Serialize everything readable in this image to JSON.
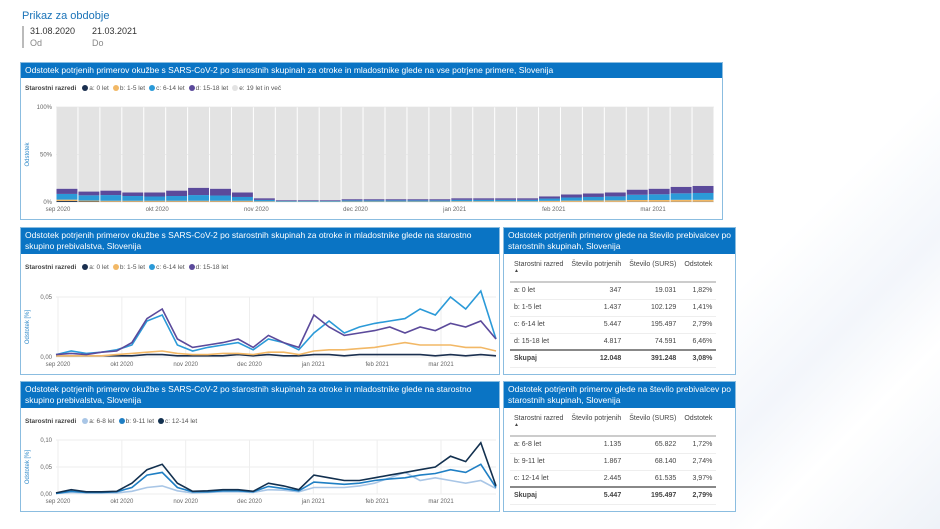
{
  "period": {
    "title": "Prikaz za obdobje",
    "from": "31.08.2020",
    "to": "21.03.2021",
    "from_label": "Od",
    "to_label": "Do"
  },
  "panel1": {
    "title": "Odstotek potrjenih primerov okužbe s SARS-CoV-2 po starostnih skupinah za otroke in mladostnike glede na vse potrjene primere, Slovenija"
  },
  "panel2": {
    "title": "Odstotek potrjenih primerov okužbe s SARS-CoV-2 po starostnih skupinah za otroke in mladostnike glede na starostno skupino prebivalstva, Slovenija"
  },
  "panel3": {
    "title": "Odstotek potrjenih primerov okužbe s SARS-CoV-2 po starostnih skupinah za otroke in mladostnike glede na starostno skupino prebivalstva, Slovenija"
  },
  "table1": {
    "title": "Odstotek potrjenih primerov glede na število prebivalcev po starostnih skupinah, Slovenija",
    "headers": [
      "Starostni razred",
      "Število potrjenih",
      "Število (SURS)",
      "Odstotek"
    ],
    "rows": [
      [
        "a: 0 let",
        "347",
        "19.031",
        "1,82%"
      ],
      [
        "b: 1-5 let",
        "1.437",
        "102.129",
        "1,41%"
      ],
      [
        "c: 6-14 let",
        "5.447",
        "195.497",
        "2,79%"
      ],
      [
        "d: 15-18 let",
        "4.817",
        "74.591",
        "6,46%"
      ]
    ],
    "total": [
      "Skupaj",
      "12.048",
      "391.248",
      "3,08%"
    ]
  },
  "table2": {
    "title": "Odstotek potrjenih primerov glede na število prebivalcev po starostnih skupinah, Slovenija",
    "headers": [
      "Starostni razred",
      "Število potrjenih",
      "Število (SURS)",
      "Odstotek"
    ],
    "rows": [
      [
        "a: 6-8 let",
        "1.135",
        "65.822",
        "1,72%"
      ],
      [
        "b: 9-11 let",
        "1.867",
        "68.140",
        "2,74%"
      ],
      [
        "c: 12-14 let",
        "2.445",
        "61.535",
        "3,97%"
      ]
    ],
    "total": [
      "Skupaj",
      "5.447",
      "195.497",
      "2,79%"
    ]
  },
  "chart_data": [
    {
      "type": "bar",
      "stacked": true,
      "legend_title": "Starostni razredi",
      "ylabel": "Odstotek",
      "ylim": [
        0,
        100
      ],
      "yticks": [
        "0%",
        "50%",
        "100%"
      ],
      "xticks": [
        "sep 2020",
        "okt 2020",
        "nov 2020",
        "dec 2020",
        "jan 2021",
        "feb 2021",
        "mar 2021"
      ],
      "x": [
        "2020-08-31",
        "2020-09-07",
        "2020-09-14",
        "2020-09-21",
        "2020-09-28",
        "2020-10-05",
        "2020-10-12",
        "2020-10-19",
        "2020-10-26",
        "2020-11-02",
        "2020-11-09",
        "2020-11-16",
        "2020-11-23",
        "2020-11-30",
        "2020-12-07",
        "2020-12-14",
        "2020-12-21",
        "2020-12-28",
        "2021-01-04",
        "2021-01-11",
        "2021-01-18",
        "2021-01-25",
        "2021-02-01",
        "2021-02-08",
        "2021-02-15",
        "2021-02-22",
        "2021-03-01",
        "2021-03-08",
        "2021-03-15",
        "2021-03-21"
      ],
      "series": [
        {
          "name": "a: 0 let",
          "color": "#1a2f4f",
          "values": [
            1,
            0.5,
            0.3,
            0.3,
            0.3,
            0.3,
            0.3,
            0.3,
            0.3,
            0.2,
            0.1,
            0.1,
            0.1,
            0.1,
            0.1,
            0.1,
            0.1,
            0.1,
            0.1,
            0.1,
            0.1,
            0.1,
            0.2,
            0.2,
            0.2,
            0.2,
            0.3,
            0.3,
            0.3,
            0.3
          ]
        },
        {
          "name": "b: 1-5 let",
          "color": "#f2b866",
          "values": [
            1.5,
            1,
            1,
            1,
            1,
            1,
            1,
            1,
            1,
            0.5,
            0.3,
            0.3,
            0.3,
            0.4,
            0.4,
            0.4,
            0.4,
            0.4,
            0.6,
            0.6,
            0.6,
            0.6,
            1,
            1.2,
            1.4,
            1.5,
            1.8,
            1.8,
            2,
            2
          ]
        },
        {
          "name": "c: 6-14 let",
          "color": "#2b9ad8",
          "values": [
            6,
            5.5,
            6,
            5,
            4.5,
            5,
            6,
            5.5,
            4,
            1.5,
            0.8,
            0.8,
            0.8,
            1.2,
            1.2,
            1.2,
            1.2,
            1.2,
            1.6,
            1.6,
            1.6,
            1.6,
            2.4,
            3.3,
            3.7,
            4.2,
            5.5,
            6,
            6.8,
            7.2
          ]
        },
        {
          "name": "d: 15-18 let",
          "color": "#5b4a9b",
          "values": [
            5.5,
            4,
            4.7,
            3.7,
            4.2,
            5.7,
            7.7,
            7.2,
            4.7,
            1.8,
            0.8,
            0.8,
            0.8,
            1.3,
            1.3,
            1.3,
            1.3,
            1.3,
            1.7,
            1.7,
            1.7,
            1.7,
            2.4,
            3.3,
            3.7,
            4.1,
            5.4,
            5.9,
            6.9,
            7.5
          ]
        },
        {
          "name": "e: 19 let in več",
          "color": "#e3e3e3",
          "values": [
            86,
            89,
            88,
            90,
            90,
            88,
            85,
            86,
            90,
            96,
            98,
            98,
            98,
            97,
            97,
            97,
            97,
            97,
            96,
            96,
            96,
            96,
            94,
            92,
            91,
            90,
            87,
            86,
            84,
            83
          ]
        }
      ]
    },
    {
      "type": "line",
      "legend_title": "Starostni razredi",
      "ylabel": "Odstotek [%]",
      "ylim": [
        0,
        0.06
      ],
      "yticks": [
        "0,00",
        "0,05"
      ],
      "xticks": [
        "sep 2020",
        "okt 2020",
        "nov 2020",
        "dec 2020",
        "jan 2021",
        "feb 2021",
        "mar 2021"
      ],
      "series": [
        {
          "name": "a: 0 let",
          "color": "#1a2f4f",
          "values": [
            0.001,
            0.001,
            0.001,
            0.001,
            0.001,
            0.001,
            0.002,
            0.002,
            0.001,
            0.001,
            0.001,
            0.001,
            0.002,
            0.001,
            0.002,
            0.001,
            0.001,
            0.002,
            0.002,
            0.001,
            0.002,
            0.002,
            0.002,
            0.002,
            0.002,
            0.001,
            0.002,
            0.001,
            0.002,
            0.001
          ]
        },
        {
          "name": "b: 1-5 let",
          "color": "#f2b866",
          "values": [
            0.001,
            0.001,
            0.001,
            0.001,
            0.002,
            0.003,
            0.004,
            0.005,
            0.003,
            0.002,
            0.002,
            0.003,
            0.003,
            0.002,
            0.004,
            0.004,
            0.002,
            0.005,
            0.006,
            0.006,
            0.007,
            0.008,
            0.01,
            0.012,
            0.01,
            0.01,
            0.01,
            0.008,
            0.008,
            0.005
          ]
        },
        {
          "name": "c: 6-14 let",
          "color": "#2b9ad8",
          "values": [
            0.002,
            0.005,
            0.003,
            0.004,
            0.006,
            0.01,
            0.03,
            0.035,
            0.01,
            0.005,
            0.008,
            0.01,
            0.012,
            0.006,
            0.015,
            0.012,
            0.006,
            0.02,
            0.03,
            0.02,
            0.025,
            0.028,
            0.03,
            0.032,
            0.04,
            0.035,
            0.05,
            0.04,
            0.055,
            0.015
          ]
        },
        {
          "name": "d: 15-18 let",
          "color": "#5b4a9b",
          "values": [
            0.002,
            0.003,
            0.002,
            0.004,
            0.005,
            0.012,
            0.032,
            0.04,
            0.015,
            0.008,
            0.01,
            0.012,
            0.015,
            0.008,
            0.018,
            0.012,
            0.008,
            0.035,
            0.025,
            0.018,
            0.02,
            0.022,
            0.025,
            0.02,
            0.025,
            0.022,
            0.028,
            0.025,
            0.03,
            0.015
          ]
        }
      ]
    },
    {
      "type": "line",
      "legend_title": "Starostni razredi",
      "ylabel": "Odstotek [%]",
      "ylim": [
        0,
        0.1
      ],
      "yticks": [
        "0,00",
        "0,05",
        "0,10"
      ],
      "xticks": [
        "sep 2020",
        "okt 2020",
        "nov 2020",
        "dec 2020",
        "jan 2021",
        "feb 2021",
        "mar 2021"
      ],
      "series": [
        {
          "name": "a: 6-8 let",
          "color": "#a9c6e6",
          "values": [
            0.001,
            0.003,
            0.002,
            0.002,
            0.002,
            0.005,
            0.012,
            0.015,
            0.006,
            0.002,
            0.003,
            0.004,
            0.004,
            0.003,
            0.008,
            0.007,
            0.004,
            0.012,
            0.012,
            0.012,
            0.015,
            0.02,
            0.03,
            0.04,
            0.025,
            0.03,
            0.025,
            0.02,
            0.025,
            0.01
          ]
        },
        {
          "name": "b: 9-11 let",
          "color": "#1f7fc4",
          "values": [
            0.001,
            0.005,
            0.003,
            0.003,
            0.004,
            0.012,
            0.035,
            0.04,
            0.012,
            0.004,
            0.004,
            0.006,
            0.006,
            0.004,
            0.014,
            0.01,
            0.006,
            0.022,
            0.02,
            0.018,
            0.02,
            0.025,
            0.028,
            0.03,
            0.035,
            0.038,
            0.045,
            0.04,
            0.055,
            0.012
          ]
        },
        {
          "name": "c: 12-14 let",
          "color": "#12304f",
          "values": [
            0.002,
            0.008,
            0.004,
            0.004,
            0.005,
            0.02,
            0.045,
            0.055,
            0.02,
            0.005,
            0.006,
            0.008,
            0.008,
            0.005,
            0.02,
            0.015,
            0.008,
            0.035,
            0.03,
            0.025,
            0.025,
            0.03,
            0.035,
            0.04,
            0.045,
            0.05,
            0.07,
            0.06,
            0.095,
            0.015
          ]
        }
      ]
    }
  ]
}
